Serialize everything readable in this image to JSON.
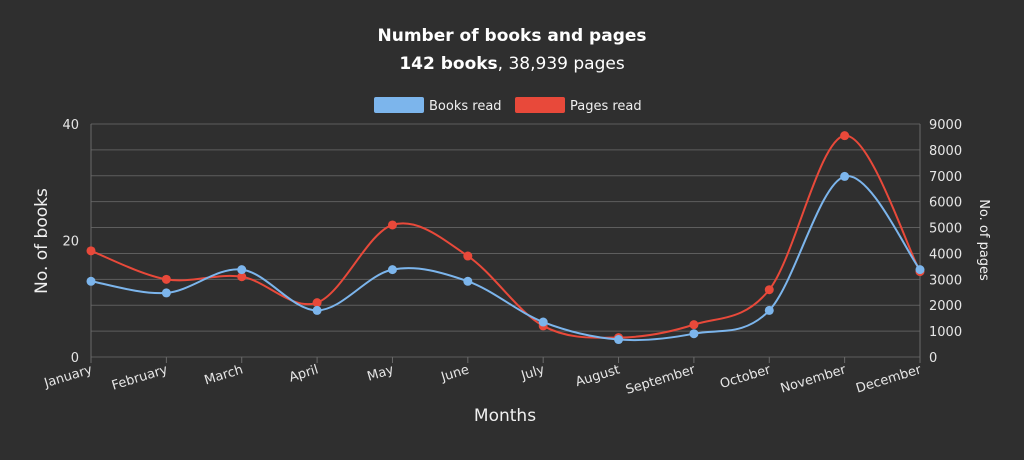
{
  "chart_data": {
    "type": "line",
    "title": "Number of books and pages",
    "subtitle": {
      "bold": "142 books",
      "rest": ", 38,939 pages"
    },
    "categories": [
      "January",
      "February",
      "March",
      "April",
      "May",
      "June",
      "July",
      "August",
      "September",
      "October",
      "November",
      "December"
    ],
    "series": [
      {
        "name": "Books read",
        "axis": "left",
        "color": "#7cb5ec",
        "values": [
          13,
          11,
          15,
          8,
          15,
          13,
          6,
          3,
          4,
          8,
          31,
          15
        ]
      },
      {
        "name": "Pages read",
        "axis": "right",
        "color": "#e8493a",
        "values": [
          4100,
          3000,
          3100,
          2100,
          5100,
          3900,
          1200,
          750,
          1250,
          2600,
          8550,
          3300
        ]
      }
    ],
    "xlabel": "Months",
    "ylabel_left": "No. of books",
    "ylabel_right": "No. of pages",
    "ylim_left": [
      0,
      40
    ],
    "ylim_right": [
      0,
      9000
    ],
    "left_ticks": [
      0,
      20,
      40
    ],
    "right_ticks": [
      0,
      1000,
      2000,
      3000,
      4000,
      5000,
      6000,
      7000,
      8000,
      9000
    ],
    "grid": true,
    "legend_position": "top-center"
  }
}
